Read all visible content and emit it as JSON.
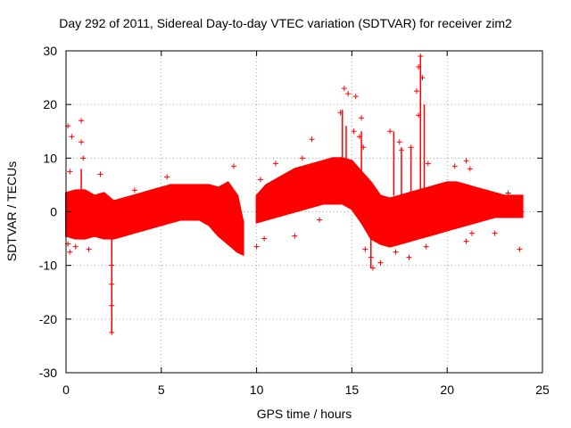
{
  "chart_data": {
    "type": "scatter",
    "title": "Day 292 of 2011, Sidereal Day-to-day VTEC variation (SDTVAR) for receiver zim2",
    "xlabel": "GPS time / hours",
    "ylabel": "SDTVAR / TECUs",
    "xlim": [
      0,
      25
    ],
    "ylim": [
      -30,
      30
    ],
    "xticks": [
      0,
      5,
      10,
      15,
      20,
      25
    ],
    "yticks": [
      -30,
      -20,
      -10,
      0,
      10,
      20,
      30
    ],
    "grid": true,
    "marker": "+",
    "color": "#ff0000",
    "band": [
      {
        "x": 0.0,
        "lo": -4.5,
        "hi": 3.5
      },
      {
        "x": 0.5,
        "lo": -5.0,
        "hi": 4.0
      },
      {
        "x": 1.0,
        "lo": -5.0,
        "hi": 4.0
      },
      {
        "x": 1.5,
        "lo": -4.5,
        "hi": 3.0
      },
      {
        "x": 2.0,
        "lo": -5.0,
        "hi": 3.5
      },
      {
        "x": 2.5,
        "lo": -5.0,
        "hi": 2.0
      },
      {
        "x": 3.0,
        "lo": -4.5,
        "hi": 2.5
      },
      {
        "x": 3.5,
        "lo": -4.0,
        "hi": 3.0
      },
      {
        "x": 4.0,
        "lo": -3.5,
        "hi": 3.5
      },
      {
        "x": 4.5,
        "lo": -3.0,
        "hi": 4.0
      },
      {
        "x": 5.0,
        "lo": -2.5,
        "hi": 4.5
      },
      {
        "x": 5.5,
        "lo": -2.0,
        "hi": 5.0
      },
      {
        "x": 6.0,
        "lo": -1.5,
        "hi": 5.0
      },
      {
        "x": 6.5,
        "lo": -1.5,
        "hi": 5.0
      },
      {
        "x": 7.0,
        "lo": -1.5,
        "hi": 5.0
      },
      {
        "x": 7.5,
        "lo": -2.5,
        "hi": 5.0
      },
      {
        "x": 8.0,
        "lo": -4.5,
        "hi": 4.5
      },
      {
        "x": 8.5,
        "lo": -6.0,
        "hi": 5.5
      },
      {
        "x": 9.0,
        "lo": -7.5,
        "hi": 3.0
      },
      {
        "x": 9.3,
        "lo": -8.0,
        "hi": -2.0
      },
      {
        "x": 10.0,
        "lo": -2.0,
        "hi": 3.0
      },
      {
        "x": 10.5,
        "lo": -1.5,
        "hi": 5.0
      },
      {
        "x": 11.0,
        "lo": -1.0,
        "hi": 6.0
      },
      {
        "x": 11.5,
        "lo": -0.5,
        "hi": 7.0
      },
      {
        "x": 12.0,
        "lo": 0.0,
        "hi": 8.0
      },
      {
        "x": 12.5,
        "lo": 0.5,
        "hi": 8.5
      },
      {
        "x": 13.0,
        "lo": 1.0,
        "hi": 9.0
      },
      {
        "x": 13.5,
        "lo": 1.5,
        "hi": 9.5
      },
      {
        "x": 14.0,
        "lo": 1.5,
        "hi": 10.0
      },
      {
        "x": 14.5,
        "lo": 1.5,
        "hi": 10.0
      },
      {
        "x": 15.0,
        "lo": 0.5,
        "hi": 9.5
      },
      {
        "x": 15.5,
        "lo": -2.0,
        "hi": 7.5
      },
      {
        "x": 16.0,
        "lo": -5.0,
        "hi": 5.5
      },
      {
        "x": 16.5,
        "lo": -6.0,
        "hi": 3.0
      },
      {
        "x": 17.0,
        "lo": -6.5,
        "hi": 2.5
      },
      {
        "x": 17.5,
        "lo": -6.0,
        "hi": 3.0
      },
      {
        "x": 18.0,
        "lo": -5.5,
        "hi": 3.5
      },
      {
        "x": 18.5,
        "lo": -5.0,
        "hi": 4.0
      },
      {
        "x": 19.0,
        "lo": -4.5,
        "hi": 4.5
      },
      {
        "x": 19.5,
        "lo": -4.0,
        "hi": 5.0
      },
      {
        "x": 20.0,
        "lo": -3.5,
        "hi": 5.5
      },
      {
        "x": 20.5,
        "lo": -3.0,
        "hi": 5.5
      },
      {
        "x": 21.0,
        "lo": -2.5,
        "hi": 5.0
      },
      {
        "x": 21.5,
        "lo": -2.0,
        "hi": 4.5
      },
      {
        "x": 22.0,
        "lo": -1.5,
        "hi": 4.0
      },
      {
        "x": 22.5,
        "lo": -1.0,
        "hi": 3.5
      },
      {
        "x": 23.0,
        "lo": -1.0,
        "hi": 3.0
      },
      {
        "x": 23.5,
        "lo": -1.0,
        "hi": 3.0
      },
      {
        "x": 23.95,
        "lo": -1.0,
        "hi": 3.0
      }
    ],
    "outliers": [
      {
        "x": 0.1,
        "y": 16.0
      },
      {
        "x": 0.3,
        "y": 14.0
      },
      {
        "x": 0.8,
        "y": 17.0
      },
      {
        "x": 0.8,
        "y": 13.0
      },
      {
        "x": 0.9,
        "y": 10.0
      },
      {
        "x": 0.2,
        "y": 7.5
      },
      {
        "x": 0.1,
        "y": -6.0
      },
      {
        "x": 0.2,
        "y": -7.5
      },
      {
        "x": 0.5,
        "y": -6.5
      },
      {
        "x": 1.2,
        "y": -7.0
      },
      {
        "x": 1.8,
        "y": 7.0
      },
      {
        "x": 2.4,
        "y": -10.0
      },
      {
        "x": 2.4,
        "y": -13.5
      },
      {
        "x": 2.4,
        "y": -17.5
      },
      {
        "x": 2.4,
        "y": -22.5
      },
      {
        "x": 3.6,
        "y": 4.0
      },
      {
        "x": 5.3,
        "y": 6.5
      },
      {
        "x": 8.8,
        "y": 8.5
      },
      {
        "x": 9.2,
        "y": -7.5
      },
      {
        "x": 10.0,
        "y": -6.5
      },
      {
        "x": 10.4,
        "y": -5.0
      },
      {
        "x": 10.2,
        "y": 6.0
      },
      {
        "x": 11.0,
        "y": 9.0
      },
      {
        "x": 12.0,
        "y": -4.5
      },
      {
        "x": 12.2,
        "y": 6.5
      },
      {
        "x": 12.4,
        "y": 10.0
      },
      {
        "x": 12.9,
        "y": 13.5
      },
      {
        "x": 13.3,
        "y": -1.5
      },
      {
        "x": 14.4,
        "y": 18.5
      },
      {
        "x": 14.6,
        "y": 23.0
      },
      {
        "x": 14.8,
        "y": 22.0
      },
      {
        "x": 15.2,
        "y": 21.5
      },
      {
        "x": 15.1,
        "y": 15.0
      },
      {
        "x": 15.4,
        "y": 14.0
      },
      {
        "x": 15.5,
        "y": 17.5
      },
      {
        "x": 15.6,
        "y": 12.0
      },
      {
        "x": 15.7,
        "y": -7.0
      },
      {
        "x": 16.0,
        "y": -8.5
      },
      {
        "x": 16.1,
        "y": -10.5
      },
      {
        "x": 16.5,
        "y": -9.5
      },
      {
        "x": 17.0,
        "y": 15.0
      },
      {
        "x": 17.3,
        "y": -7.5
      },
      {
        "x": 17.5,
        "y": 13.0
      },
      {
        "x": 17.6,
        "y": 11.5
      },
      {
        "x": 18.0,
        "y": -8.5
      },
      {
        "x": 18.1,
        "y": 12.0
      },
      {
        "x": 18.4,
        "y": 22.5
      },
      {
        "x": 18.5,
        "y": 27.0
      },
      {
        "x": 18.6,
        "y": 29.0
      },
      {
        "x": 18.7,
        "y": 25.0
      },
      {
        "x": 18.5,
        "y": 18.0
      },
      {
        "x": 18.9,
        "y": -6.5
      },
      {
        "x": 19.0,
        "y": 9.0
      },
      {
        "x": 20.4,
        "y": 8.5
      },
      {
        "x": 21.0,
        "y": 9.5
      },
      {
        "x": 21.2,
        "y": 8.0
      },
      {
        "x": 21.0,
        "y": -5.5
      },
      {
        "x": 21.3,
        "y": -4.0
      },
      {
        "x": 22.5,
        "y": -4.0
      },
      {
        "x": 23.2,
        "y": 3.5
      },
      {
        "x": 23.8,
        "y": -7.0
      },
      {
        "x": 23.9,
        "y": 0.0
      }
    ],
    "spikes": [
      {
        "x": 0.8,
        "lo": -4.0,
        "hi": 8.0
      },
      {
        "x": 2.4,
        "lo": -22.5,
        "hi": 2.0
      },
      {
        "x": 14.5,
        "lo": 5.0,
        "hi": 19.0
      },
      {
        "x": 14.7,
        "lo": 5.0,
        "hi": 16.0
      },
      {
        "x": 15.5,
        "lo": 4.0,
        "hi": 15.0
      },
      {
        "x": 16.0,
        "lo": -10.5,
        "hi": -3.0
      },
      {
        "x": 17.2,
        "lo": 3.0,
        "hi": 15.0
      },
      {
        "x": 17.6,
        "lo": 2.0,
        "hi": 12.0
      },
      {
        "x": 18.1,
        "lo": 3.0,
        "hi": 12.0
      },
      {
        "x": 18.6,
        "lo": 4.0,
        "hi": 29.0
      },
      {
        "x": 18.8,
        "lo": 4.0,
        "hi": 20.0
      }
    ]
  }
}
